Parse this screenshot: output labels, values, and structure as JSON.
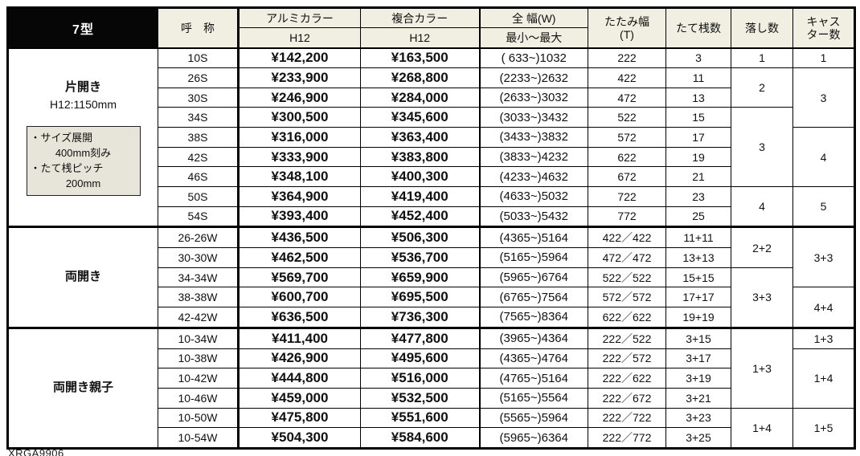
{
  "header": {
    "model": "7型",
    "col_name": "呼　称",
    "col_alumi": "アルミカラー",
    "col_alumi_sub": "H12",
    "col_fukugo": "複合カラー",
    "col_fukugo_sub": "H12",
    "col_width": "全 幅(W)",
    "col_width_sub": "最小〜最大",
    "col_tatami_line1": "たたみ幅",
    "col_tatami_line2": "(T)",
    "col_tatezan": "たて桟数",
    "col_otoshi": "落し数",
    "col_caster_line1": "キャス",
    "col_caster_line2": "ター数"
  },
  "sections": [
    {
      "label_lines": [
        "片開き",
        "H12:1150mm"
      ],
      "note_lines": [
        "・サイズ展開",
        "400mm刻み",
        "・たて桟ピッチ",
        "200mm"
      ],
      "rows": [
        {
          "name": "10S",
          "alumi": "¥142,200",
          "fukugo": "¥163,500",
          "width": "(  633~)1032",
          "tatami": "222",
          "tatezan": "3"
        },
        {
          "name": "26S",
          "alumi": "¥233,900",
          "fukugo": "¥268,800",
          "width": "(2233~)2632",
          "tatami": "422",
          "tatezan": "11"
        },
        {
          "name": "30S",
          "alumi": "¥246,900",
          "fukugo": "¥284,000",
          "width": "(2633~)3032",
          "tatami": "472",
          "tatezan": "13"
        },
        {
          "name": "34S",
          "alumi": "¥300,500",
          "fukugo": "¥345,600",
          "width": "(3033~)3432",
          "tatami": "522",
          "tatezan": "15"
        },
        {
          "name": "38S",
          "alumi": "¥316,000",
          "fukugo": "¥363,400",
          "width": "(3433~)3832",
          "tatami": "572",
          "tatezan": "17"
        },
        {
          "name": "42S",
          "alumi": "¥333,900",
          "fukugo": "¥383,800",
          "width": "(3833~)4232",
          "tatami": "622",
          "tatezan": "19"
        },
        {
          "name": "46S",
          "alumi": "¥348,100",
          "fukugo": "¥400,300",
          "width": "(4233~)4632",
          "tatami": "672",
          "tatezan": "21"
        },
        {
          "name": "50S",
          "alumi": "¥364,900",
          "fukugo": "¥419,400",
          "width": "(4633~)5032",
          "tatami": "722",
          "tatezan": "23"
        },
        {
          "name": "54S",
          "alumi": "¥393,400",
          "fukugo": "¥452,400",
          "width": "(5033~)5432",
          "tatami": "772",
          "tatezan": "25"
        }
      ],
      "otoshi_cells": [
        {
          "value": "1",
          "rowspan": 1
        },
        {
          "value": "2",
          "rowspan": 2
        },
        {
          "value": "3",
          "rowspan": 4
        },
        {
          "value": "4",
          "rowspan": 2
        }
      ],
      "caster_cells": [
        {
          "value": "1",
          "rowspan": 1
        },
        {
          "value": "3",
          "rowspan": 3
        },
        {
          "value": "4",
          "rowspan": 3
        },
        {
          "value": "5",
          "rowspan": 2
        }
      ]
    },
    {
      "label_lines": [
        "両開き"
      ],
      "rows": [
        {
          "name": "26-26W",
          "alumi": "¥436,500",
          "fukugo": "¥506,300",
          "width": "(4365~)5164",
          "tatami": "422／422",
          "tatezan": "11+11"
        },
        {
          "name": "30-30W",
          "alumi": "¥462,500",
          "fukugo": "¥536,700",
          "width": "(5165~)5964",
          "tatami": "472／472",
          "tatezan": "13+13"
        },
        {
          "name": "34-34W",
          "alumi": "¥569,700",
          "fukugo": "¥659,900",
          "width": "(5965~)6764",
          "tatami": "522／522",
          "tatezan": "15+15"
        },
        {
          "name": "38-38W",
          "alumi": "¥600,700",
          "fukugo": "¥695,500",
          "width": "(6765~)7564",
          "tatami": "572／572",
          "tatezan": "17+17"
        },
        {
          "name": "42-42W",
          "alumi": "¥636,500",
          "fukugo": "¥736,300",
          "width": "(7565~)8364",
          "tatami": "622／622",
          "tatezan": "19+19"
        }
      ],
      "otoshi_cells": [
        {
          "value": "2+2",
          "rowspan": 2
        },
        {
          "value": "3+3",
          "rowspan": 3
        }
      ],
      "caster_cells": [
        {
          "value": "3+3",
          "rowspan": 3
        },
        {
          "value": "4+4",
          "rowspan": 2
        }
      ]
    },
    {
      "label_lines": [
        "両開き親子"
      ],
      "rows": [
        {
          "name": "10-34W",
          "alumi": "¥411,400",
          "fukugo": "¥477,800",
          "width": "(3965~)4364",
          "tatami": "222／522",
          "tatezan": "3+15"
        },
        {
          "name": "10-38W",
          "alumi": "¥426,900",
          "fukugo": "¥495,600",
          "width": "(4365~)4764",
          "tatami": "222／572",
          "tatezan": "3+17"
        },
        {
          "name": "10-42W",
          "alumi": "¥444,800",
          "fukugo": "¥516,000",
          "width": "(4765~)5164",
          "tatami": "222／622",
          "tatezan": "3+19"
        },
        {
          "name": "10-46W",
          "alumi": "¥459,000",
          "fukugo": "¥532,500",
          "width": "(5165~)5564",
          "tatami": "222／672",
          "tatezan": "3+21"
        },
        {
          "name": "10-50W",
          "alumi": "¥475,800",
          "fukugo": "¥551,600",
          "width": "(5565~)5964",
          "tatami": "222／722",
          "tatezan": "3+23"
        },
        {
          "name": "10-54W",
          "alumi": "¥504,300",
          "fukugo": "¥584,600",
          "width": "(5965~)6364",
          "tatami": "222／772",
          "tatezan": "3+25"
        }
      ],
      "otoshi_cells": [
        {
          "value": "1+3",
          "rowspan": 4
        },
        {
          "value": "1+4",
          "rowspan": 2
        }
      ],
      "caster_cells": [
        {
          "value": "1+3",
          "rowspan": 1
        },
        {
          "value": "1+4",
          "rowspan": 3
        },
        {
          "value": "1+5",
          "rowspan": 2
        }
      ]
    }
  ],
  "footer_code": "XRGA9906"
}
